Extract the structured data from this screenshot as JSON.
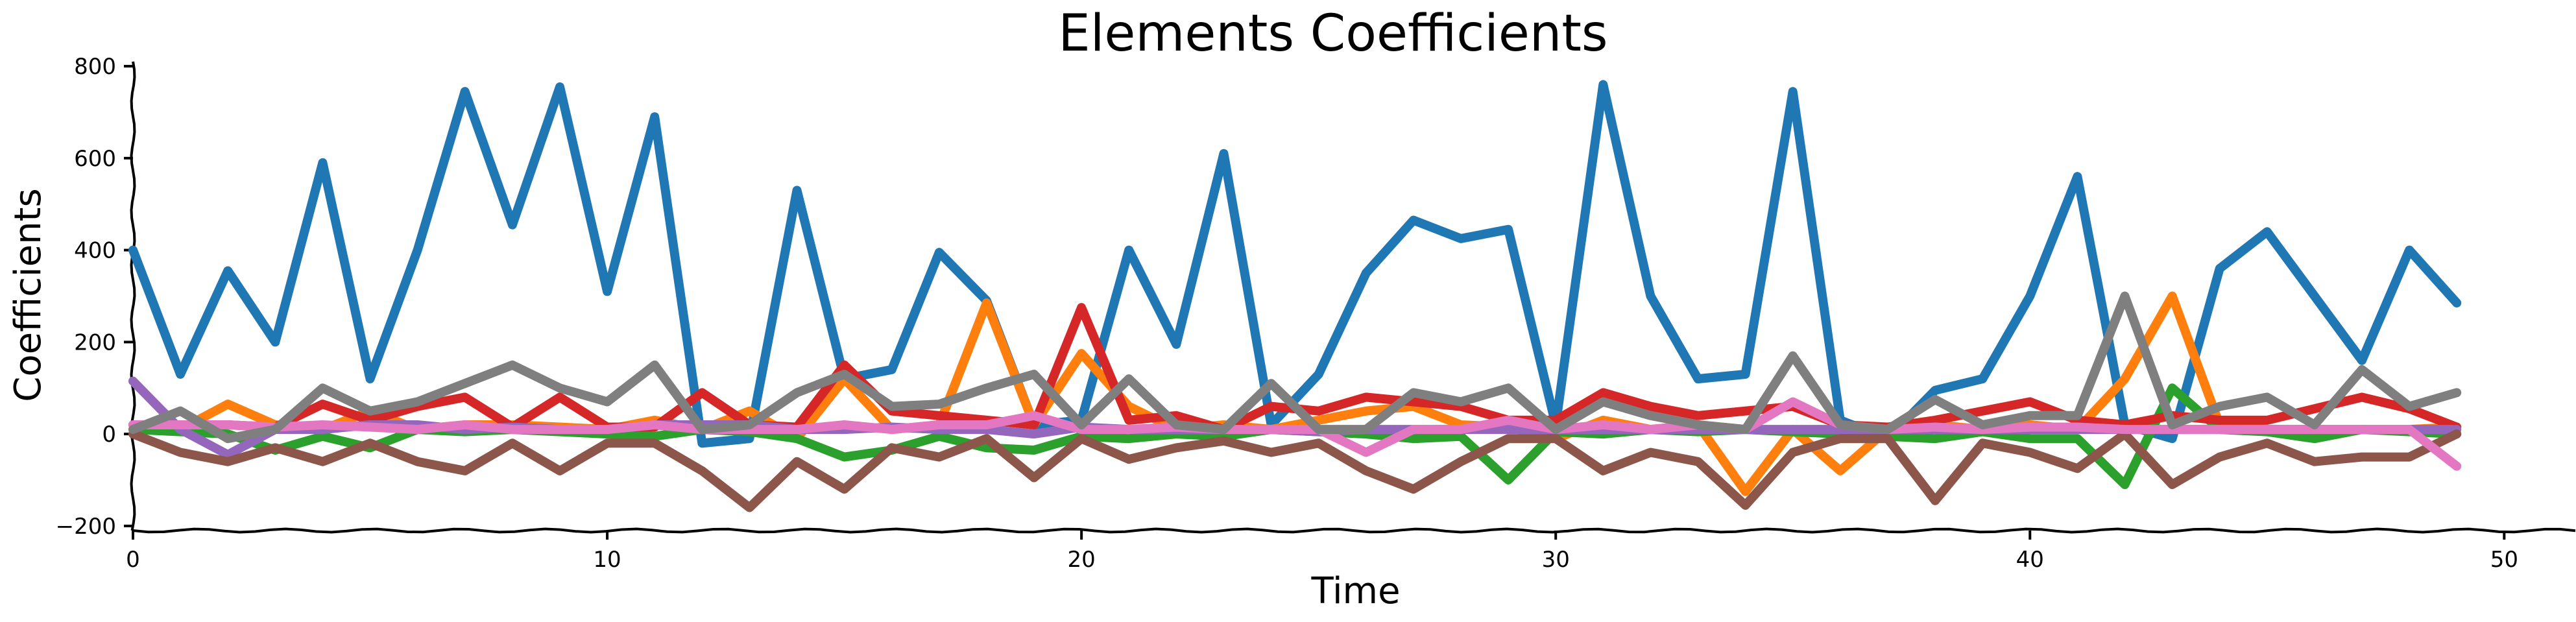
{
  "chart_data": {
    "type": "line",
    "title": "Elements Coefficients",
    "xlabel": "Time",
    "ylabel": "Coefficients",
    "xlim": [
      0,
      51.5
    ],
    "ylim": [
      -210,
      810
    ],
    "xticks": [
      0,
      10,
      20,
      30,
      40,
      50
    ],
    "yticks": [
      -200,
      0,
      200,
      400,
      600,
      800
    ],
    "x_tick_labels": [
      "0",
      "10",
      "20",
      "30",
      "40",
      "50"
    ],
    "y_tick_labels": [
      "−200",
      "0",
      "200",
      "400",
      "600",
      "800"
    ],
    "grid": false,
    "legend": "none",
    "x": [
      0,
      1,
      2,
      3,
      4,
      5,
      6,
      7,
      8,
      9,
      10,
      11,
      12,
      13,
      14,
      15,
      16,
      17,
      18,
      19,
      20,
      21,
      22,
      23,
      24,
      25,
      26,
      27,
      28,
      29,
      30,
      31,
      32,
      33,
      34,
      35,
      36,
      37,
      38,
      39,
      40,
      41,
      42,
      43,
      44,
      45,
      46,
      47,
      48,
      49
    ],
    "series": [
      {
        "color": "#1f77b4",
        "values": [
          400,
          130,
          355,
          200,
          590,
          120,
          400,
          745,
          455,
          755,
          310,
          690,
          -20,
          -10,
          530,
          120,
          140,
          395,
          290,
          20,
          30,
          400,
          195,
          610,
          20,
          130,
          350,
          465,
          425,
          445,
          20,
          760,
          300,
          120,
          130,
          745,
          30,
          -10,
          95,
          120,
          300,
          560,
          20,
          -10,
          360,
          440,
          300,
          160,
          400,
          285
        ]
      },
      {
        "color": "#ff7f0e",
        "values": [
          10,
          10,
          65,
          20,
          10,
          50,
          10,
          20,
          20,
          15,
          10,
          30,
          10,
          50,
          -10,
          120,
          10,
          20,
          285,
          20,
          175,
          60,
          10,
          20,
          10,
          30,
          50,
          60,
          20,
          15,
          -10,
          30,
          10,
          20,
          -125,
          10,
          -80,
          10,
          20,
          10,
          20,
          10,
          120,
          300,
          20,
          10,
          10,
          10,
          10,
          15
        ]
      },
      {
        "color": "#2ca02c",
        "values": [
          10,
          5,
          0,
          -35,
          -5,
          -30,
          10,
          5,
          10,
          5,
          0,
          -5,
          10,
          5,
          -10,
          -50,
          -35,
          -5,
          -30,
          -35,
          -5,
          -10,
          0,
          -5,
          10,
          5,
          0,
          -10,
          -5,
          -100,
          5,
          0,
          10,
          5,
          10,
          5,
          0,
          -5,
          -10,
          5,
          -10,
          -10,
          -110,
          100,
          10,
          5,
          -10,
          10,
          5,
          0
        ]
      },
      {
        "color": "#d62728",
        "values": [
          20,
          20,
          20,
          15,
          65,
          30,
          60,
          80,
          15,
          80,
          15,
          15,
          90,
          20,
          15,
          150,
          50,
          40,
          30,
          20,
          275,
          30,
          40,
          10,
          60,
          50,
          80,
          70,
          60,
          30,
          30,
          90,
          60,
          40,
          50,
          60,
          20,
          15,
          30,
          50,
          70,
          30,
          20,
          40,
          30,
          30,
          55,
          80,
          55,
          15
        ]
      },
      {
        "color": "#9467bd",
        "values": [
          115,
          10,
          -45,
          10,
          10,
          20,
          20,
          10,
          15,
          10,
          10,
          20,
          20,
          20,
          10,
          10,
          15,
          10,
          10,
          0,
          15,
          10,
          10,
          10,
          10,
          5,
          10,
          10,
          10,
          10,
          10,
          10,
          10,
          10,
          10,
          10,
          10,
          10,
          10,
          10,
          10,
          10,
          10,
          10,
          10,
          10,
          10,
          10,
          10,
          10
        ]
      },
      {
        "color": "#8c564b",
        "values": [
          0,
          -40,
          -60,
          -30,
          -60,
          -20,
          -60,
          -80,
          -20,
          -80,
          -20,
          -20,
          -80,
          -160,
          -60,
          -120,
          -30,
          -50,
          -10,
          -95,
          -10,
          -55,
          -30,
          -15,
          -40,
          -20,
          -80,
          -120,
          -60,
          -10,
          -10,
          -80,
          -40,
          -60,
          -155,
          -40,
          -10,
          -10,
          -145,
          -20,
          -40,
          -75,
          0,
          -110,
          -50,
          -20,
          -60,
          -50,
          -50,
          0
        ]
      },
      {
        "color": "#e377c2",
        "values": [
          20,
          20,
          20,
          15,
          20,
          15,
          10,
          20,
          10,
          10,
          10,
          20,
          10,
          10,
          10,
          20,
          10,
          20,
          20,
          40,
          10,
          10,
          15,
          10,
          10,
          10,
          -40,
          10,
          10,
          30,
          10,
          20,
          10,
          20,
          10,
          70,
          20,
          10,
          15,
          10,
          15,
          15,
          10,
          10,
          10,
          10,
          10,
          10,
          10,
          -70
        ]
      },
      {
        "color": "#7f7f7f",
        "values": [
          10,
          50,
          -10,
          10,
          100,
          50,
          70,
          110,
          150,
          100,
          70,
          150,
          10,
          20,
          90,
          130,
          60,
          65,
          100,
          130,
          20,
          120,
          20,
          10,
          110,
          10,
          10,
          90,
          70,
          100,
          10,
          70,
          40,
          20,
          10,
          170,
          20,
          10,
          75,
          20,
          40,
          40,
          300,
          20,
          60,
          80,
          20,
          140,
          60,
          90
        ]
      }
    ]
  }
}
